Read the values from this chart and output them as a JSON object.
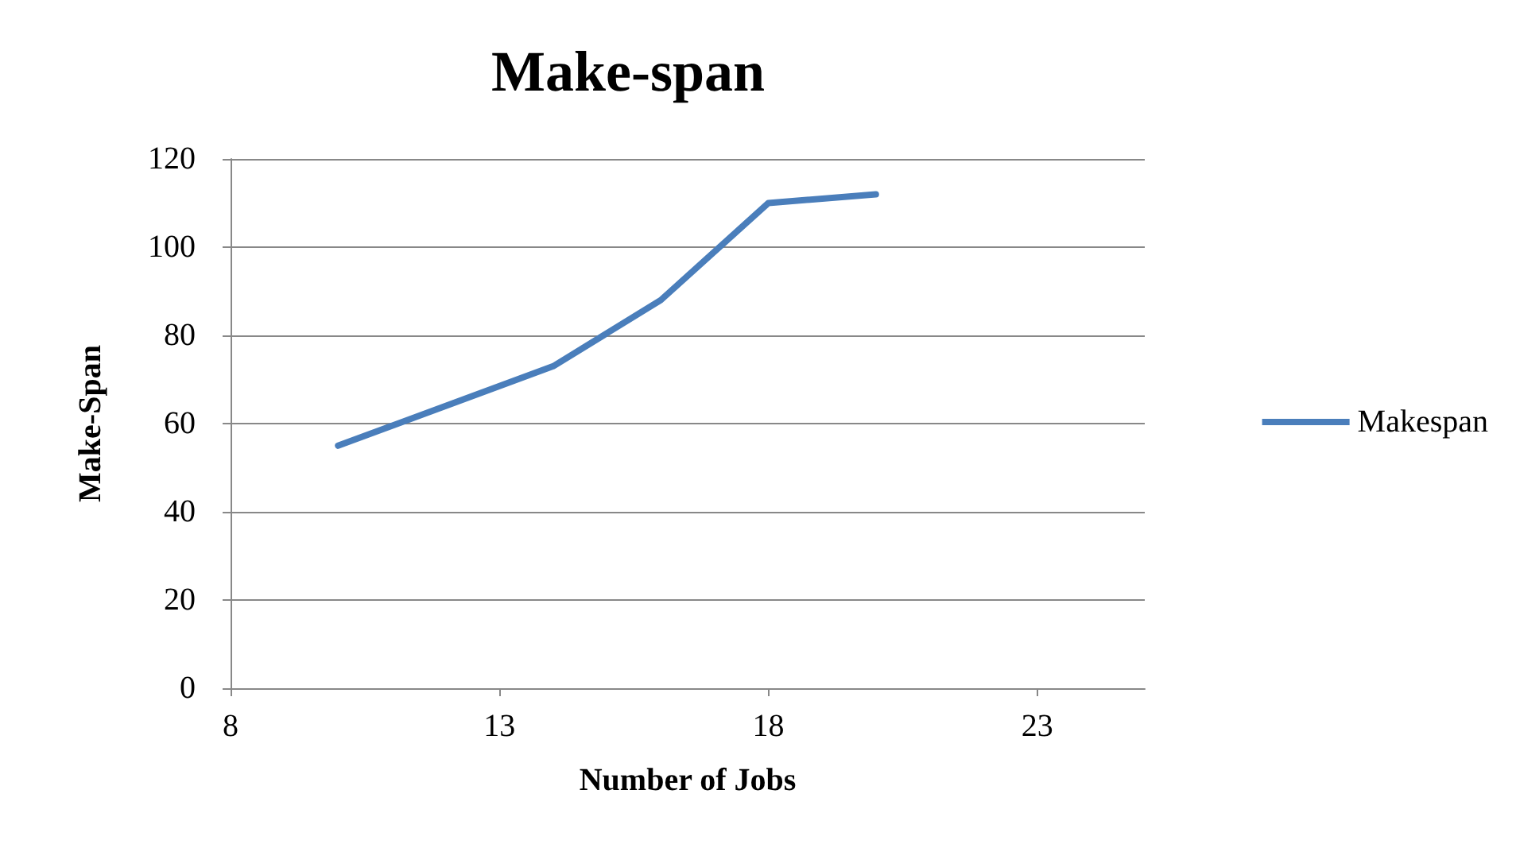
{
  "chart_data": {
    "type": "line",
    "title": "Make-span",
    "xlabel": "Number of Jobs",
    "ylabel": "Make-Span",
    "x": [
      10,
      14,
      16,
      18,
      20
    ],
    "series": [
      {
        "name": "Makespan",
        "color": "#4a7ebb",
        "values": [
          55,
          73,
          88,
          110,
          112
        ]
      }
    ],
    "xlim": [
      8,
      25
    ],
    "xticks": [
      8,
      13,
      18,
      23
    ],
    "ylim": [
      0,
      120
    ],
    "yticks": [
      0,
      20,
      40,
      60,
      80,
      100,
      120
    ],
    "grid": "y",
    "legend": "right",
    "marker": "none",
    "line_style": "solid"
  }
}
